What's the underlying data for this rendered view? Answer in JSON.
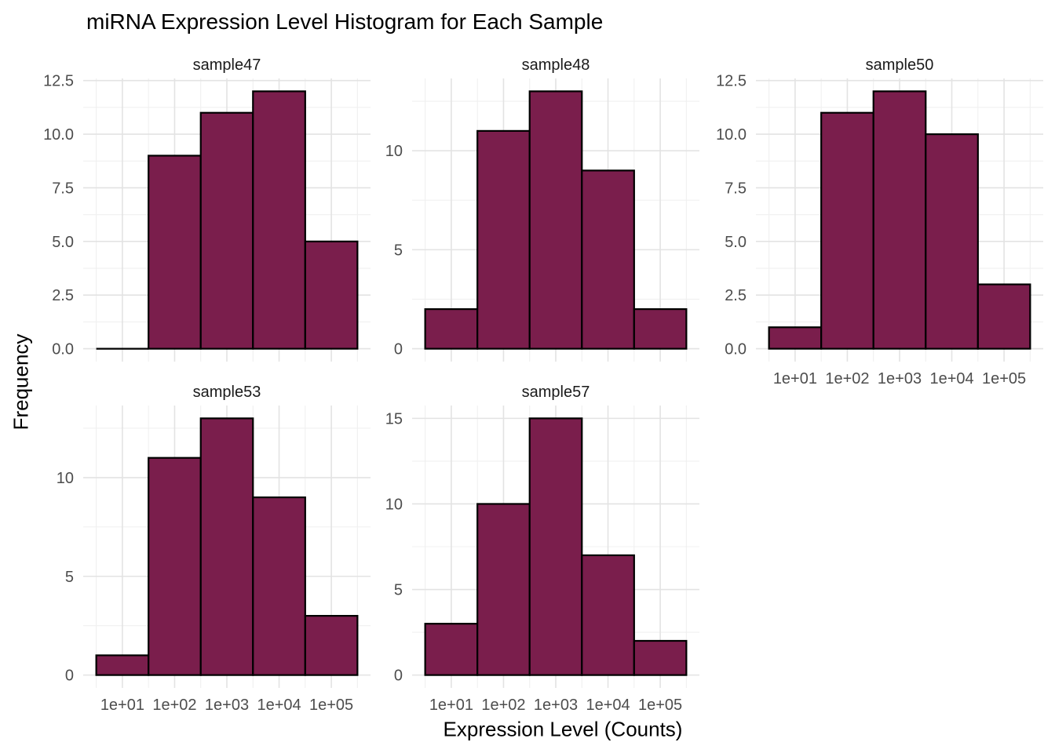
{
  "chart_data": {
    "type": "bar",
    "variant": "faceted-histogram",
    "title": "miRNA Expression Level Histogram for Each Sample",
    "xlabel": "Expression Level (Counts)",
    "ylabel": "Frequency",
    "x_scale": "log10",
    "x_tick_labels": [
      "1e+01",
      "1e+02",
      "1e+03",
      "1e+04",
      "1e+05"
    ],
    "x_tick_values_log10": [
      1,
      2,
      3,
      4,
      5
    ],
    "bin_edges_log10": [
      0.5,
      1.5,
      2.5,
      3.5,
      4.5,
      5.5
    ],
    "grid": true,
    "legend": "none",
    "colors": {
      "bar_fill": "#7A1E4C",
      "bar_stroke": "#000000",
      "grid_major": "#E3E3E3",
      "grid_minor": "#F0F0F0",
      "tick_label": "#4D4D4D",
      "facet_title": "#1A1A1A",
      "background": "#FFFFFF"
    },
    "facets": [
      {
        "name": "sample47",
        "row": 0,
        "col": 0,
        "counts": [
          0,
          9,
          11,
          12,
          5
        ],
        "y_max": 12,
        "y_tick_values": [
          0,
          2.5,
          5,
          7.5,
          10,
          12.5
        ],
        "y_tick_labels": [
          "0.0",
          "2.5",
          "5.0",
          "7.5",
          "10.0",
          "12.5"
        ],
        "show_x_tick_labels": false
      },
      {
        "name": "sample48",
        "row": 0,
        "col": 1,
        "counts": [
          2,
          11,
          13,
          9,
          2
        ],
        "y_max": 13,
        "y_tick_values": [
          0,
          5,
          10
        ],
        "y_tick_labels": [
          "0",
          "5",
          "10"
        ],
        "show_x_tick_labels": false
      },
      {
        "name": "sample50",
        "row": 0,
        "col": 2,
        "counts": [
          1,
          11,
          12,
          10,
          3
        ],
        "y_max": 12,
        "y_tick_values": [
          0,
          2.5,
          5,
          7.5,
          10,
          12.5
        ],
        "y_tick_labels": [
          "0.0",
          "2.5",
          "5.0",
          "7.5",
          "10.0",
          "12.5"
        ],
        "show_x_tick_labels": true
      },
      {
        "name": "sample53",
        "row": 1,
        "col": 0,
        "counts": [
          1,
          11,
          13,
          9,
          3
        ],
        "y_max": 13,
        "y_tick_values": [
          0,
          5,
          10
        ],
        "y_tick_labels": [
          "0",
          "5",
          "10"
        ],
        "show_x_tick_labels": true
      },
      {
        "name": "sample57",
        "row": 1,
        "col": 1,
        "counts": [
          3,
          10,
          15,
          7,
          2
        ],
        "y_max": 15,
        "y_tick_values": [
          0,
          5,
          10,
          15
        ],
        "y_tick_labels": [
          "0",
          "5",
          "10",
          "15"
        ],
        "show_x_tick_labels": true
      }
    ]
  }
}
